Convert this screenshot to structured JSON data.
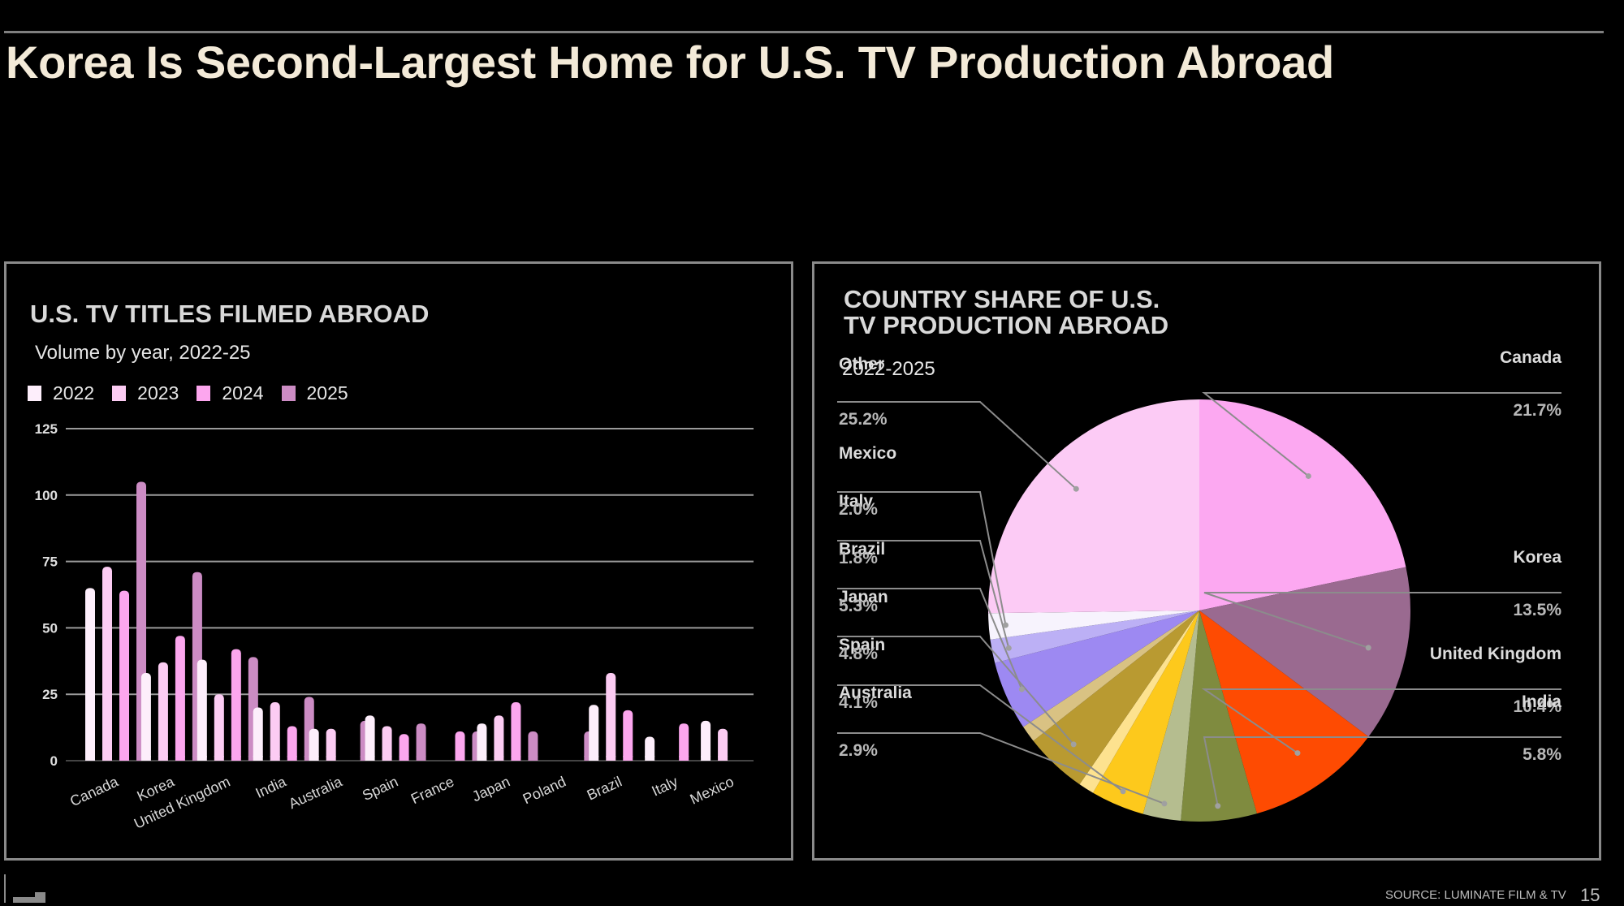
{
  "slide": {
    "title": "Korea Is Second-Largest Home for U.S. TV Production Abroad",
    "source": "SOURCE: LUMINATE FILM & TV",
    "page_number": "15"
  },
  "chart_data": [
    {
      "type": "bar",
      "title": "U.S. TV TITLES FILMED ABROAD",
      "subtitle": "Volume by year, 2022-25",
      "xlabel": "",
      "ylabel": "",
      "ylim": [
        0,
        125
      ],
      "yticks": [
        "0",
        "25",
        "50",
        "75",
        "100",
        "125"
      ],
      "ytick_values": [
        0,
        25,
        50,
        75,
        100,
        125
      ],
      "grid": true,
      "legend_position": "top-left",
      "categories": [
        "Canada",
        "Korea",
        "United Kingdom",
        "India",
        "Australia",
        "Spain",
        "France",
        "Japan",
        "Poland",
        "Brazil",
        "Italy",
        "Mexico"
      ],
      "series": [
        {
          "name": "2022",
          "color": "#fdeefb",
          "values": [
            65,
            33,
            38,
            20,
            12,
            17,
            0,
            14,
            0,
            21,
            9,
            15
          ]
        },
        {
          "name": "2023",
          "color": "#fcccf3",
          "values": [
            73,
            37,
            25,
            22,
            12,
            13,
            0,
            17,
            0,
            33,
            0,
            12
          ]
        },
        {
          "name": "2024",
          "color": "#fca6ee",
          "values": [
            64,
            47,
            42,
            13,
            0,
            10,
            11,
            22,
            0,
            19,
            14,
            0
          ]
        },
        {
          "name": "2025",
          "color": "#cc8cc4",
          "values": [
            105,
            71,
            39,
            24,
            15,
            14,
            11,
            11,
            11,
            0,
            0,
            0
          ]
        }
      ]
    },
    {
      "type": "pie",
      "title_line1": "COUNTRY SHARE OF U.S.",
      "title_line2": "TV PRODUCTION ABROAD",
      "subtitle": "2022-2025",
      "slices": [
        {
          "label": "Canada",
          "value": 21.7,
          "display": "21.7%",
          "color": "#fca8f1",
          "side": "right"
        },
        {
          "label": "Korea",
          "value": 13.5,
          "display": "13.5%",
          "color": "#9a6a90",
          "side": "right"
        },
        {
          "label": "United Kingdom",
          "value": 10.4,
          "display": "10.4%",
          "color": "#fe4b02",
          "side": "right"
        },
        {
          "label": "India",
          "value": 5.8,
          "display": "5.8%",
          "color": "#7f8b3f",
          "side": "right"
        },
        {
          "label": "Australia",
          "value": 2.9,
          "display": "2.9%",
          "color": "#b5bd8f",
          "side": "left"
        },
        {
          "label": "Spain",
          "value": 4.1,
          "display": "4.1%",
          "color": "#fdc91c",
          "side": "left"
        },
        {
          "label": "",
          "value": 1.2,
          "display": "",
          "color": "#fde28f",
          "side": "none"
        },
        {
          "label": "Japan",
          "value": 4.8,
          "display": "4.8%",
          "color": "#b99a31",
          "side": "left"
        },
        {
          "label": "",
          "value": 1.3,
          "display": "",
          "color": "#d9c283",
          "side": "none"
        },
        {
          "label": "Brazil",
          "value": 5.3,
          "display": "5.3%",
          "color": "#9d89f2",
          "side": "left"
        },
        {
          "label": "Italy",
          "value": 1.8,
          "display": "1.8%",
          "color": "#bcb0f5",
          "side": "left"
        },
        {
          "label": "Mexico",
          "value": 2.0,
          "display": "2.0%",
          "color": "#f7f3fd",
          "side": "left"
        },
        {
          "label": "Other",
          "value": 25.2,
          "display": "25.2%",
          "color": "#fccbf5",
          "side": "left"
        }
      ]
    }
  ]
}
